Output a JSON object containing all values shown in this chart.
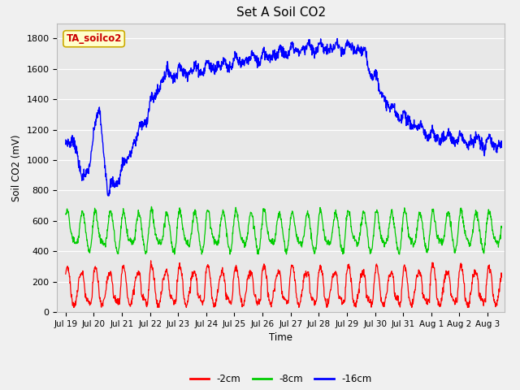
{
  "title": "Set A Soil CO2",
  "ylabel": "Soil CO2 (mV)",
  "xlabel": "Time",
  "legend_label": "TA_soilco2",
  "series_labels": [
    "-2cm",
    "-8cm",
    "-16cm"
  ],
  "series_colors": [
    "#ff0000",
    "#00cc00",
    "#0000ff"
  ],
  "fig_bg_color": "#f0f0f0",
  "plot_bg_color": "#e8e8e8",
  "ylim": [
    0,
    1900
  ],
  "yticks": [
    0,
    200,
    400,
    600,
    800,
    1000,
    1200,
    1400,
    1600,
    1800
  ],
  "xlim_left": -0.3,
  "xlim_right": 15.6,
  "num_points": 1500,
  "num_days": 15.5
}
